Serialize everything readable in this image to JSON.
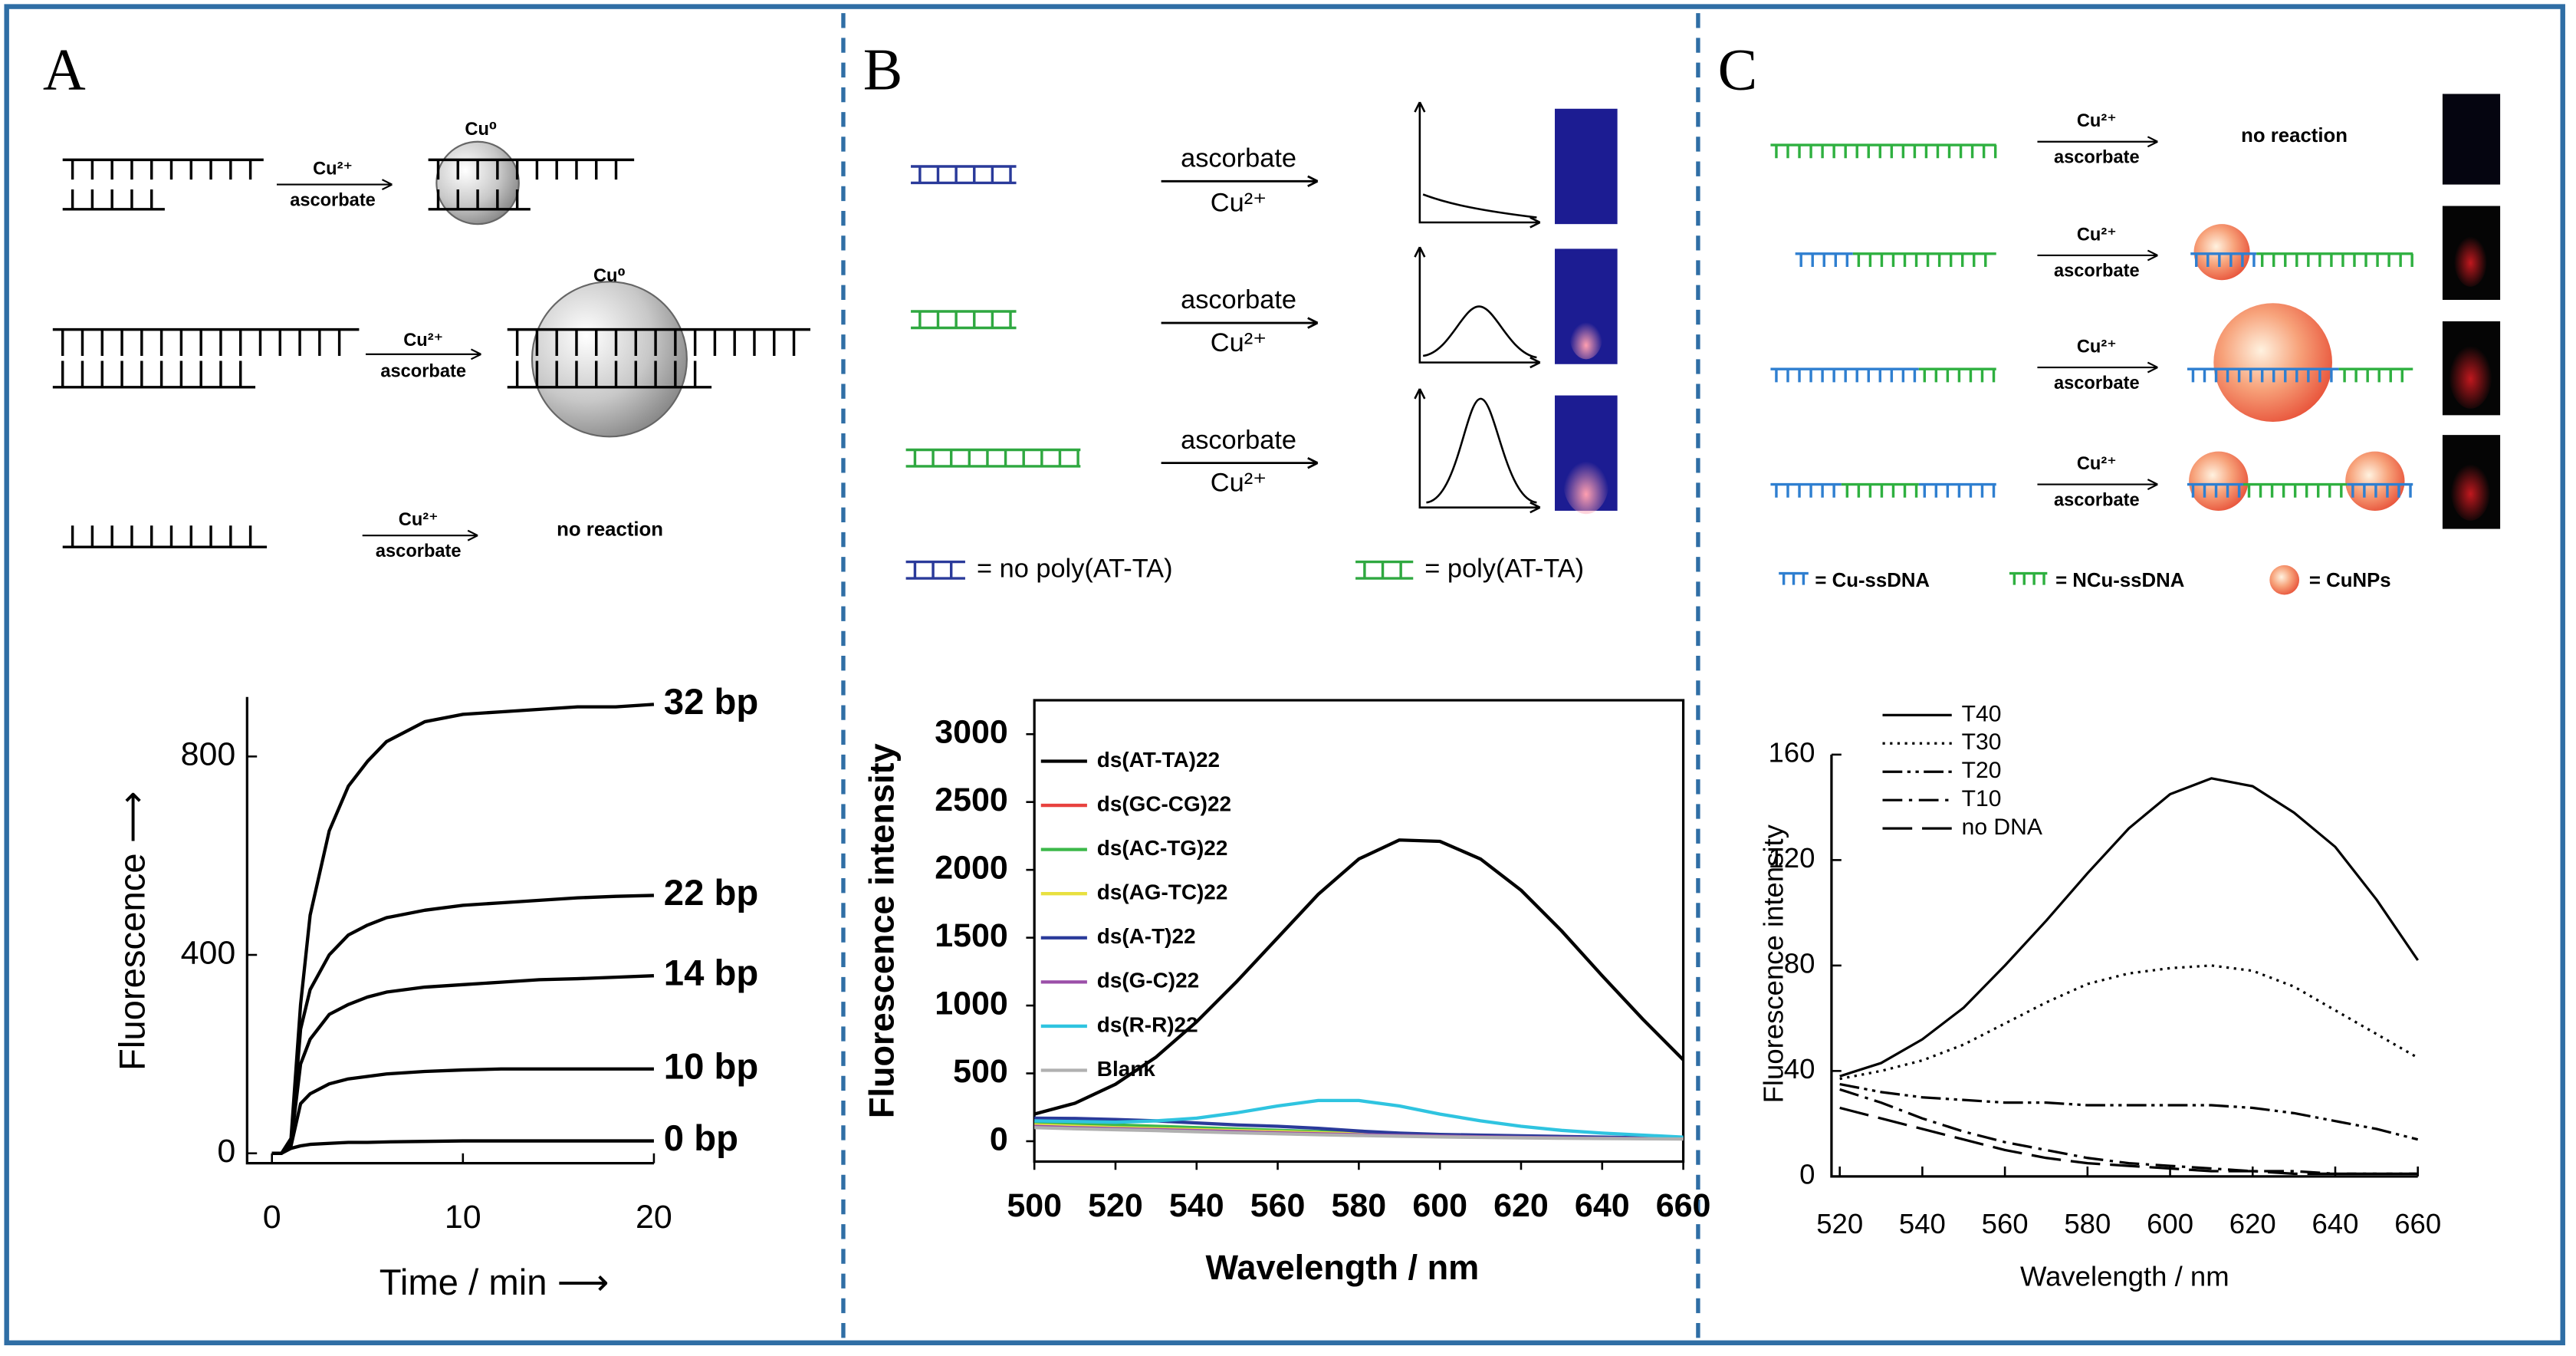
{
  "panel_labels": [
    "A",
    "B",
    "C"
  ],
  "schematic_a": {
    "reagents": [
      {
        "top": "Cu²⁺",
        "bottom": "ascorbate"
      },
      {
        "top": "Cu²⁺",
        "bottom": "ascorbate"
      },
      {
        "top": "Cu²⁺",
        "bottom": "ascorbate"
      }
    ],
    "product_labels": [
      "Cu⁰",
      "Cu⁰"
    ],
    "no_reaction": "no reaction"
  },
  "schematic_b": {
    "reagents": [
      {
        "top": "ascorbate",
        "bottom": "Cu²⁺"
      },
      {
        "top": "ascorbate",
        "bottom": "Cu²⁺"
      },
      {
        "top": "ascorbate",
        "bottom": "Cu²⁺"
      }
    ],
    "legend": [
      "= no poly(AT-TA)",
      "= poly(AT-TA)"
    ]
  },
  "schematic_c": {
    "reagents": [
      {
        "top": "Cu²⁺",
        "bottom": "ascorbate"
      },
      {
        "top": "Cu²⁺",
        "bottom": "ascorbate"
      },
      {
        "top": "Cu²⁺",
        "bottom": "ascorbate"
      },
      {
        "top": "Cu²⁺",
        "bottom": "ascorbate"
      }
    ],
    "no_reaction": "no reaction",
    "legend": [
      "= Cu-ssDNA",
      "= NCu-ssDNA",
      "= CuNPs"
    ]
  },
  "chart_data": [
    {
      "type": "line",
      "xlabel": "Time / min ⟶",
      "ylabel": "Fluorescence ⟶",
      "x": [
        0,
        0.5,
        1,
        1.5,
        2,
        3,
        4,
        5,
        6,
        8,
        10,
        12,
        14,
        16,
        18,
        20
      ],
      "xlim": [
        -1.3,
        20
      ],
      "ylim": [
        -20,
        920
      ],
      "xticks": [
        0,
        10,
        20
      ],
      "yticks": [
        0,
        400,
        800
      ],
      "end_labels": true,
      "series": [
        {
          "name": "32 bp",
          "color": "#000000",
          "values": [
            0,
            0,
            30,
            300,
            480,
            650,
            740,
            790,
            830,
            870,
            885,
            890,
            895,
            900,
            900,
            905
          ]
        },
        {
          "name": "22 bp",
          "color": "#000000",
          "values": [
            0,
            0,
            20,
            250,
            330,
            400,
            440,
            460,
            475,
            490,
            500,
            505,
            510,
            515,
            518,
            520
          ]
        },
        {
          "name": "14 bp",
          "color": "#000000",
          "values": [
            0,
            0,
            20,
            180,
            230,
            280,
            300,
            315,
            325,
            335,
            340,
            345,
            350,
            352,
            355,
            358
          ]
        },
        {
          "name": "10 bp",
          "color": "#000000",
          "values": [
            0,
            0,
            15,
            100,
            120,
            140,
            150,
            155,
            160,
            165,
            168,
            170,
            170,
            170,
            170,
            170
          ]
        },
        {
          "name": "0 bp",
          "color": "#000000",
          "values": [
            0,
            0,
            10,
            15,
            18,
            20,
            22,
            22,
            23,
            24,
            25,
            25,
            25,
            25,
            25,
            25
          ]
        }
      ]
    },
    {
      "type": "line",
      "xlabel": "Wavelength / nm",
      "ylabel": "Fluorescence intensity",
      "x": [
        500,
        510,
        520,
        530,
        540,
        550,
        560,
        570,
        580,
        590,
        600,
        610,
        620,
        630,
        640,
        650,
        660
      ],
      "xlim": [
        500,
        660
      ],
      "ylim": [
        -150,
        3250
      ],
      "xticks": [
        500,
        520,
        540,
        560,
        580,
        600,
        620,
        640,
        660
      ],
      "yticks": [
        0,
        500,
        1000,
        1500,
        2000,
        2500,
        3000
      ],
      "legend": "upper left",
      "series": [
        {
          "name": "ds(AT-TA)22",
          "color": "#000000",
          "values": [
            200,
            280,
            420,
            620,
            880,
            1180,
            1500,
            1820,
            2080,
            2220,
            2210,
            2080,
            1850,
            1550,
            1220,
            900,
            600
          ]
        },
        {
          "name": "ds(GC-CG)22",
          "color": "#e8423f",
          "values": [
            130,
            120,
            110,
            100,
            90,
            80,
            70,
            60,
            55,
            50,
            45,
            40,
            35,
            30,
            28,
            25,
            22
          ]
        },
        {
          "name": "ds(AC-TG)22",
          "color": "#3cb84a",
          "values": [
            140,
            130,
            120,
            110,
            100,
            90,
            80,
            70,
            62,
            55,
            48,
            42,
            37,
            32,
            28,
            25,
            22
          ]
        },
        {
          "name": "ds(AG-TC)22",
          "color": "#e8e040",
          "values": [
            120,
            110,
            100,
            92,
            85,
            78,
            70,
            62,
            55,
            48,
            42,
            37,
            32,
            28,
            25,
            22,
            20
          ]
        },
        {
          "name": "ds(A-T)22",
          "color": "#2a3a9a",
          "values": [
            170,
            168,
            160,
            150,
            135,
            120,
            110,
            95,
            75,
            60,
            50,
            45,
            40,
            35,
            30,
            25,
            20
          ]
        },
        {
          "name": "ds(G-C)22",
          "color": "#9b4fa8",
          "values": [
            110,
            100,
            92,
            85,
            78,
            70,
            62,
            55,
            48,
            42,
            37,
            32,
            28,
            25,
            22,
            20,
            18
          ]
        },
        {
          "name": "ds(R-R)22",
          "color": "#2fc4e0",
          "values": [
            150,
            145,
            140,
            150,
            170,
            210,
            260,
            300,
            300,
            260,
            200,
            150,
            110,
            80,
            60,
            45,
            30
          ]
        },
        {
          "name": "Blank",
          "color": "#b0b0b0",
          "values": [
            100,
            92,
            85,
            78,
            70,
            62,
            55,
            48,
            42,
            37,
            32,
            28,
            25,
            22,
            20,
            18,
            16
          ]
        }
      ]
    },
    {
      "type": "line",
      "xlabel": "Wavelength / nm",
      "ylabel": "Fluorescence intensity",
      "x": [
        520,
        530,
        540,
        550,
        560,
        570,
        580,
        590,
        600,
        610,
        620,
        630,
        640,
        650,
        660
      ],
      "xlim": [
        518,
        660
      ],
      "ylim": [
        0,
        160
      ],
      "xticks": [
        520,
        540,
        560,
        580,
        600,
        620,
        640,
        660
      ],
      "yticks": [
        0,
        40,
        80,
        120,
        160
      ],
      "legend": "upper left",
      "series": [
        {
          "name": "T40",
          "color": "#000000",
          "dash": "solid",
          "values": [
            38,
            43,
            52,
            64,
            80,
            97,
            115,
            132,
            145,
            151,
            148,
            138,
            125,
            105,
            82
          ]
        },
        {
          "name": "T30",
          "color": "#000000",
          "dash": "dotted",
          "values": [
            37,
            40,
            44,
            50,
            58,
            66,
            73,
            77,
            79,
            80,
            78,
            72,
            63,
            54,
            45
          ]
        },
        {
          "name": "T20",
          "color": "#000000",
          "dash": "dashdotdot",
          "values": [
            35,
            32,
            30,
            29,
            28,
            28,
            27,
            27,
            27,
            27,
            26,
            24,
            21,
            18,
            14
          ]
        },
        {
          "name": "T10",
          "color": "#000000",
          "dash": "dashdot",
          "values": [
            33,
            28,
            22,
            17,
            13,
            10,
            7,
            5,
            4,
            3,
            2,
            2,
            1,
            1,
            1
          ]
        },
        {
          "name": "no DNA",
          "color": "#000000",
          "dash": "longdash",
          "values": [
            26,
            22,
            18,
            14,
            10,
            7,
            5,
            4,
            3,
            2,
            2,
            1,
            1,
            1,
            1
          ]
        }
      ]
    }
  ]
}
